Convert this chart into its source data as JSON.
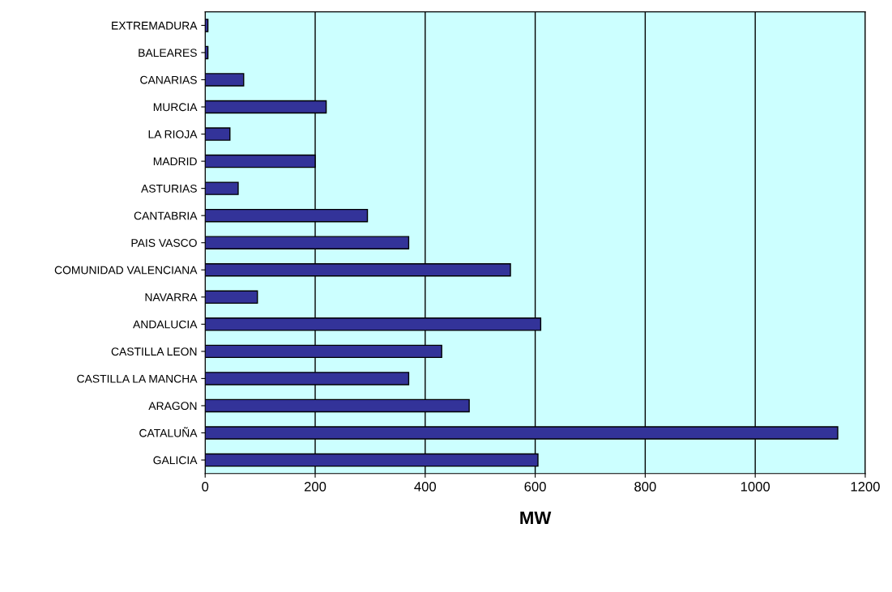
{
  "chart_data": {
    "type": "bar",
    "orientation": "horizontal",
    "xlabel": "MW",
    "categories": [
      "EXTREMADURA",
      "BALEARES",
      "CANARIAS",
      "MURCIA",
      "LA RIOJA",
      "MADRID",
      "ASTURIAS",
      "CANTABRIA",
      "PAIS VASCO",
      "COMUNIDAD VALENCIANA",
      "NAVARRA",
      "ANDALUCIA",
      "CASTILLA LEON",
      "CASTILLA LA MANCHA",
      "ARAGON",
      "CATALUÑA",
      "GALICIA"
    ],
    "values": [
      5,
      5,
      70,
      220,
      45,
      200,
      60,
      295,
      370,
      555,
      95,
      610,
      430,
      370,
      480,
      1150,
      605
    ],
    "color": "#333399",
    "xlim": [
      0,
      1200
    ],
    "xticks": [
      0,
      200,
      400,
      600,
      800,
      1000,
      1200
    ],
    "grid": "x",
    "legend": false
  }
}
